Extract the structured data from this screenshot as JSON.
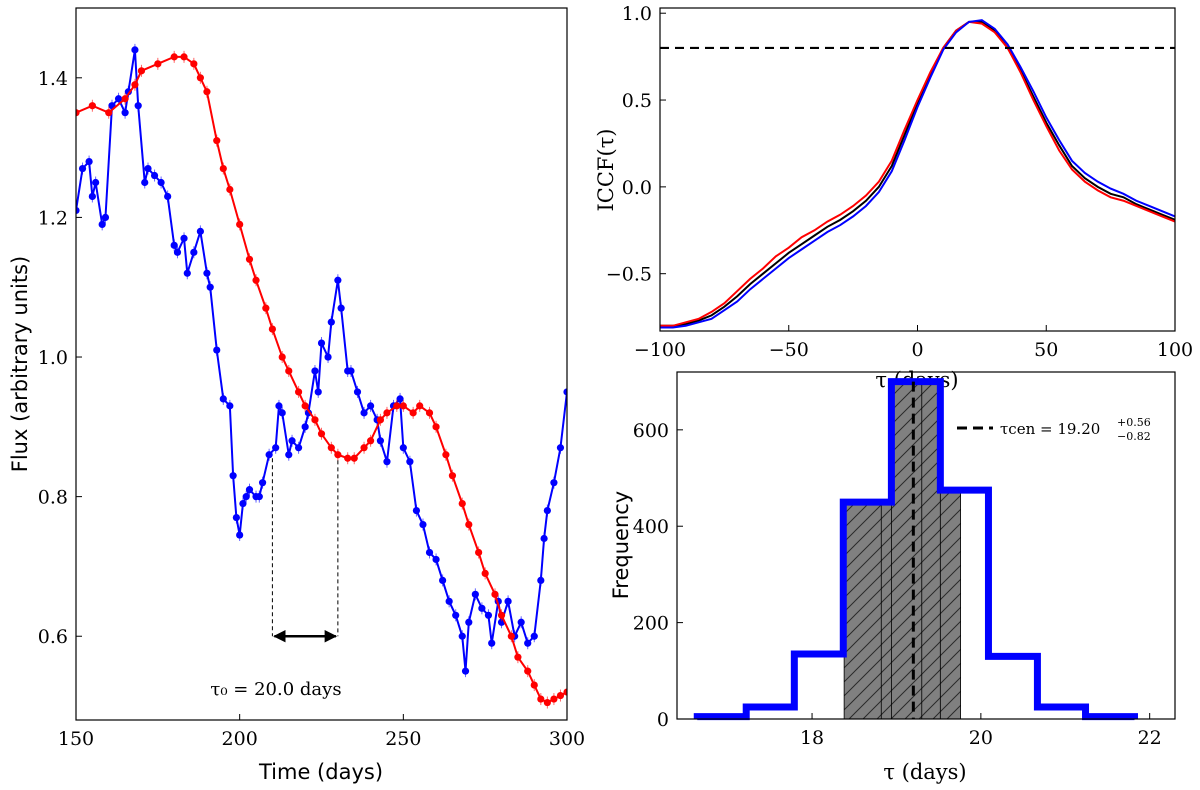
{
  "chart_data": [
    {
      "id": "lightcurves",
      "type": "line",
      "xlabel": "Time (days)",
      "ylabel": "Flux (arbitrary units)",
      "xlim": [
        150,
        300
      ],
      "ylim": [
        0.48,
        1.5
      ],
      "xticks": [
        "150",
        "200",
        "250",
        "300"
      ],
      "yticks": [
        "0.6",
        "0.8",
        "1.0",
        "1.2",
        "1.4"
      ],
      "annotation": {
        "label": "τ₀ = 20.0 days",
        "lag_from": 210,
        "lag_to": 230,
        "arrow_y": 0.6,
        "dash_top_from": 0.855,
        "dash_top_to": 0.852
      },
      "series": [
        {
          "name": "driving",
          "color": "#0000ff",
          "x": [
            150,
            152,
            154,
            155,
            156,
            158,
            159,
            161,
            163,
            165,
            166,
            168,
            169,
            171,
            172,
            174,
            176,
            178,
            180,
            181,
            183,
            184,
            186,
            188,
            190,
            191,
            193,
            195,
            197,
            198,
            199,
            200,
            201,
            202,
            203,
            205,
            206,
            207,
            209,
            211,
            212,
            213,
            215,
            216,
            218,
            220,
            221,
            223,
            224,
            225,
            227,
            228,
            230,
            231,
            233,
            234,
            236,
            238,
            240,
            242,
            243,
            245,
            247,
            249,
            250,
            252,
            254,
            256,
            258,
            260,
            262,
            264,
            266,
            268,
            269,
            270,
            272,
            274,
            276,
            277,
            279,
            280,
            282,
            284,
            286,
            288,
            290,
            292,
            293,
            294,
            296,
            298,
            300
          ],
          "values": [
            1.21,
            1.27,
            1.28,
            1.23,
            1.25,
            1.19,
            1.2,
            1.36,
            1.37,
            1.35,
            1.38,
            1.44,
            1.36,
            1.25,
            1.27,
            1.26,
            1.25,
            1.23,
            1.16,
            1.15,
            1.17,
            1.12,
            1.15,
            1.18,
            1.12,
            1.1,
            1.01,
            0.94,
            0.93,
            0.83,
            0.77,
            0.745,
            0.79,
            0.8,
            0.81,
            0.8,
            0.8,
            0.82,
            0.86,
            0.87,
            0.93,
            0.92,
            0.86,
            0.88,
            0.87,
            0.9,
            0.92,
            0.98,
            0.95,
            1.02,
            1.0,
            1.05,
            1.11,
            1.07,
            0.98,
            0.98,
            0.95,
            0.92,
            0.93,
            0.91,
            0.88,
            0.85,
            0.93,
            0.94,
            0.87,
            0.85,
            0.78,
            0.76,
            0.72,
            0.71,
            0.68,
            0.65,
            0.63,
            0.6,
            0.55,
            0.62,
            0.66,
            0.64,
            0.63,
            0.59,
            0.65,
            0.62,
            0.65,
            0.6,
            0.62,
            0.59,
            0.6,
            0.68,
            0.74,
            0.78,
            0.82,
            0.87,
            0.95
          ]
        },
        {
          "name": "responding",
          "color": "#ff0000",
          "x": [
            150,
            155,
            160,
            165,
            168,
            170,
            175,
            180,
            183,
            186,
            188,
            190,
            193,
            195,
            197,
            200,
            203,
            205,
            208,
            210,
            213,
            215,
            218,
            220,
            223,
            225,
            228,
            230,
            233,
            235,
            238,
            240,
            243,
            245,
            248,
            250,
            253,
            255,
            258,
            260,
            263,
            265,
            268,
            270,
            273,
            275,
            278,
            280,
            283,
            285,
            288,
            290,
            292,
            294,
            296,
            298,
            300
          ],
          "values": [
            1.35,
            1.36,
            1.35,
            1.37,
            1.39,
            1.41,
            1.42,
            1.43,
            1.43,
            1.42,
            1.4,
            1.38,
            1.31,
            1.27,
            1.24,
            1.19,
            1.14,
            1.11,
            1.07,
            1.04,
            1.0,
            0.98,
            0.95,
            0.93,
            0.91,
            0.89,
            0.87,
            0.86,
            0.855,
            0.855,
            0.87,
            0.88,
            0.91,
            0.92,
            0.93,
            0.93,
            0.92,
            0.93,
            0.92,
            0.9,
            0.86,
            0.83,
            0.79,
            0.76,
            0.72,
            0.69,
            0.66,
            0.63,
            0.6,
            0.57,
            0.55,
            0.53,
            0.51,
            0.505,
            0.51,
            0.515,
            0.52
          ]
        }
      ]
    },
    {
      "id": "iccf",
      "type": "line",
      "xlabel": "τ (days)",
      "ylabel": "ICCF(τ)",
      "xlim": [
        -100,
        100
      ],
      "ylim": [
        -0.83,
        1.03
      ],
      "xticks": [
        "−100",
        "−50",
        "0",
        "50",
        "100"
      ],
      "yticks": [
        "−0.5",
        "0.0",
        "0.5",
        "1.0"
      ],
      "threshold": 0.8,
      "x": [
        -100,
        -95,
        -90,
        -85,
        -80,
        -75,
        -70,
        -65,
        -60,
        -55,
        -50,
        -45,
        -40,
        -35,
        -30,
        -25,
        -20,
        -15,
        -10,
        -5,
        0,
        5,
        10,
        15,
        20,
        25,
        30,
        35,
        40,
        45,
        50,
        55,
        60,
        65,
        70,
        75,
        80,
        85,
        90,
        95,
        100
      ],
      "series": [
        {
          "name": "mean",
          "color": "#000000",
          "values": [
            -0.8,
            -0.8,
            -0.79,
            -0.77,
            -0.74,
            -0.69,
            -0.63,
            -0.56,
            -0.5,
            -0.44,
            -0.38,
            -0.33,
            -0.28,
            -0.23,
            -0.19,
            -0.14,
            -0.08,
            0.0,
            0.12,
            0.3,
            0.48,
            0.65,
            0.8,
            0.9,
            0.95,
            0.95,
            0.9,
            0.8,
            0.67,
            0.52,
            0.37,
            0.24,
            0.12,
            0.05,
            0.0,
            -0.04,
            -0.06,
            -0.1,
            -0.13,
            -0.16,
            -0.19
          ]
        },
        {
          "name": "upper",
          "color": "#ff0000",
          "values": [
            -0.8,
            -0.8,
            -0.78,
            -0.76,
            -0.72,
            -0.67,
            -0.6,
            -0.53,
            -0.47,
            -0.4,
            -0.35,
            -0.29,
            -0.25,
            -0.2,
            -0.16,
            -0.11,
            -0.05,
            0.03,
            0.15,
            0.33,
            0.5,
            0.66,
            0.8,
            0.9,
            0.95,
            0.94,
            0.89,
            0.8,
            0.66,
            0.5,
            0.35,
            0.21,
            0.1,
            0.03,
            -0.02,
            -0.06,
            -0.08,
            -0.11,
            -0.14,
            -0.17,
            -0.2
          ]
        },
        {
          "name": "lower",
          "color": "#0000ff",
          "values": [
            -0.81,
            -0.81,
            -0.8,
            -0.78,
            -0.76,
            -0.71,
            -0.66,
            -0.59,
            -0.53,
            -0.47,
            -0.41,
            -0.36,
            -0.31,
            -0.26,
            -0.22,
            -0.17,
            -0.11,
            -0.03,
            0.09,
            0.27,
            0.46,
            0.63,
            0.79,
            0.89,
            0.95,
            0.96,
            0.91,
            0.82,
            0.69,
            0.55,
            0.4,
            0.27,
            0.15,
            0.08,
            0.03,
            -0.01,
            -0.04,
            -0.08,
            -0.11,
            -0.14,
            -0.17
          ]
        }
      ]
    },
    {
      "id": "histogram",
      "type": "bar",
      "xlabel": "τ (days)",
      "ylabel": "Frequency",
      "xlim": [
        16.4,
        22.3
      ],
      "ylim": [
        0,
        720
      ],
      "xticks": [
        "18",
        "20",
        "22"
      ],
      "yticks": [
        "0",
        "200",
        "400",
        "600"
      ],
      "bin_edges": [
        16.64,
        17.22,
        17.79,
        18.37,
        18.94,
        19.52,
        20.09,
        20.67,
        21.24,
        21.82
      ],
      "counts": [
        5,
        25,
        135,
        450,
        700,
        475,
        130,
        25,
        5
      ],
      "shaded_range": [
        18.38,
        19.76
      ],
      "shaded_split": [
        18.82,
        19.3
      ],
      "tau_cen": 19.2,
      "legend": {
        "label": "τcen = 19.20",
        "plus": "+0.56",
        "minus": "−0.82"
      },
      "color": "#0000ff",
      "shade_color": "#808080"
    }
  ]
}
